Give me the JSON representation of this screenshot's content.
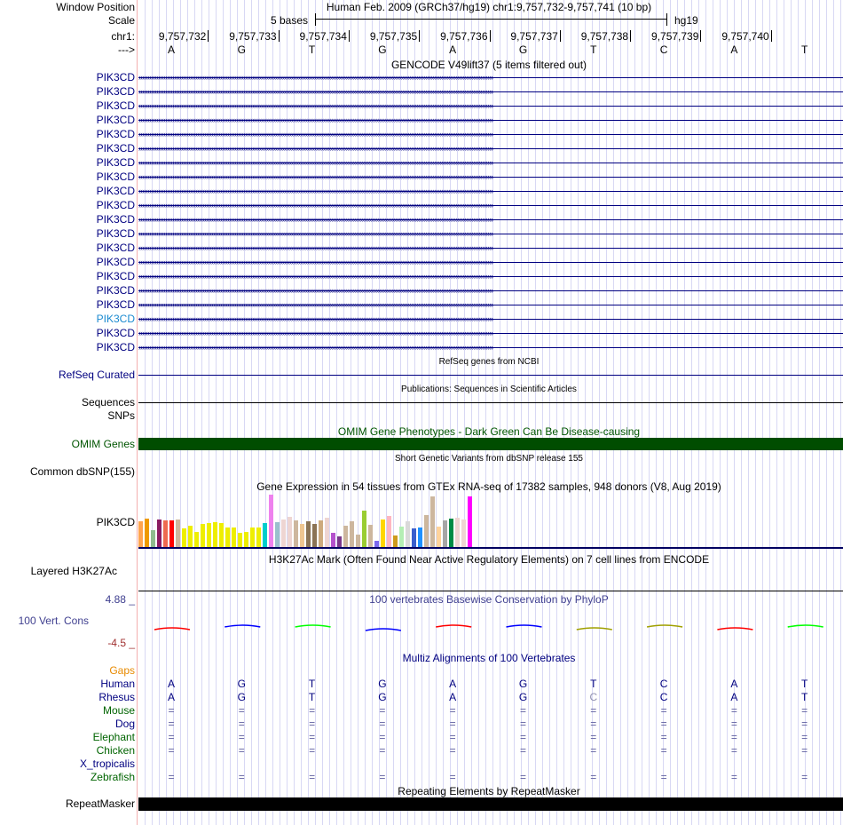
{
  "header": {
    "window_position_label": "Window Position",
    "window_position": "Human Feb. 2009 (GRCh37/hg19)   chr1:9,757,732-9,757,741 (10 bp)",
    "scale_label": "Scale",
    "scale_value": "5 bases",
    "assembly": "hg19",
    "chrom_label": "chr1:",
    "strand_label": "--->"
  },
  "coordinates": [
    "9,757,732",
    "9,757,733",
    "9,757,734",
    "9,757,735",
    "9,757,736",
    "9,757,737",
    "9,757,738",
    "9,757,739",
    "9,757,740"
  ],
  "bases": [
    "A",
    "G",
    "T",
    "G",
    "A",
    "G",
    "T",
    "C",
    "A",
    "T"
  ],
  "gencode": {
    "title": "GENCODE V49lift37 (5 items filtered out)",
    "rows": [
      "PIK3CD",
      "PIK3CD",
      "PIK3CD",
      "PIK3CD",
      "PIK3CD",
      "PIK3CD",
      "PIK3CD",
      "PIK3CD",
      "PIK3CD",
      "PIK3CD",
      "PIK3CD",
      "PIK3CD",
      "PIK3CD",
      "PIK3CD",
      "PIK3CD",
      "PIK3CD",
      "PIK3CD",
      "PIK3CD",
      "PIK3CD",
      "PIK3CD"
    ],
    "highlight_index": 17
  },
  "refseq": {
    "title": "RefSeq genes from NCBI",
    "label": "RefSeq Curated"
  },
  "publications": {
    "title": "Publications: Sequences in Scientific Articles",
    "label": "Sequences"
  },
  "snps": {
    "label": "SNPs"
  },
  "omim": {
    "title": "OMIM Gene Phenotypes - Dark Green Can Be Disease-causing",
    "label": "OMIM Genes",
    "color": "#004d00"
  },
  "dbsnp": {
    "title": "Short Genetic Variants from dbSNP release 155",
    "label": "Common dbSNP(155)"
  },
  "gtex": {
    "title": "Gene Expression in 54 tissues from GTEx RNA-seq of 17382 samples, 948 donors (V8, Aug 2019)",
    "label": "PIK3CD",
    "relative_expression": [
      0.49,
      0.54,
      0.32,
      0.52,
      0.51,
      0.51,
      0.52,
      0.36,
      0.41,
      0.29,
      0.44,
      0.46,
      0.47,
      0.46,
      0.37,
      0.37,
      0.27,
      0.29,
      0.37,
      0.37,
      0.46,
      1.0,
      0.47,
      0.52,
      0.57,
      0.51,
      0.44,
      0.49,
      0.44,
      0.51,
      0.56,
      0.27,
      0.21,
      0.41,
      0.49,
      0.24,
      0.69,
      0.42,
      0.12,
      0.52,
      0.59,
      0.22,
      0.39,
      0.49,
      0.36,
      0.37,
      0.61,
      0.96,
      0.39,
      0.51,
      0.54,
      0.56,
      0.52,
      0.97
    ],
    "colors": [
      "#ffa54f",
      "#ee9a00",
      "#8fbc8f",
      "#8b1c62",
      "#ee6a50",
      "#ff0000",
      "#cdb79e",
      "#eeee00",
      "#eeee00",
      "#eeee00",
      "#eeee00",
      "#eeee00",
      "#eeee00",
      "#eeee00",
      "#eeee00",
      "#eeee00",
      "#eeee00",
      "#eeee00",
      "#eeee00",
      "#eeee00",
      "#00cdcd",
      "#ee82ee",
      "#9ac0cd",
      "#eed5d2",
      "#eed5d2",
      "#cdb79e",
      "#eec591",
      "#8b7355",
      "#8b7355",
      "#cdaa7d",
      "#eed5d2",
      "#b452cd",
      "#7a378b",
      "#cdb79e",
      "#cdb79e",
      "#cdb79e",
      "#9acd32",
      "#cdb79e",
      "#7b68ee",
      "#ffd700",
      "#ffb6c1",
      "#cd9b1d",
      "#b4eeb4",
      "#d9d9d9",
      "#3a5fcd",
      "#1e90ff",
      "#cdb79e",
      "#cdb79e",
      "#ffd39b",
      "#a6a6a6",
      "#008b45",
      "#eed5d2",
      "#eed5d2",
      "#ff00ff"
    ]
  },
  "h3k27ac": {
    "title": "H3K27Ac Mark (Often Found Near Active Regulatory Elements) on 7 cell lines from ENCODE",
    "label": "Layered H3K27Ac"
  },
  "phylop": {
    "title": "100 vertebrates Basewise Conservation by PhyloP",
    "label": "100 Vert. Cons",
    "max": "4.88 _",
    "min": "-4.5 _",
    "colors": [
      "#ff0000",
      "#0000ff",
      "#00ff00",
      "#0000ff",
      "#ff0000",
      "#0000ff",
      "#a0a000",
      "#a0a000",
      "#ff0000",
      "#00ff00"
    ]
  },
  "multiz": {
    "title": "Multiz Alignments of 100 Vertebrates",
    "gaps_label": "Gaps",
    "species": [
      {
        "name": "Human",
        "color": "navy",
        "bases": [
          "A",
          "G",
          "T",
          "G",
          "A",
          "G",
          "T",
          "C",
          "A",
          "T"
        ]
      },
      {
        "name": "Rhesus",
        "color": "navy",
        "bases": [
          "A",
          "G",
          "T",
          "G",
          "A",
          "G",
          "C",
          "C",
          "A",
          "T"
        ]
      },
      {
        "name": "Mouse",
        "color": "green",
        "bases": [
          "=",
          "=",
          "=",
          "=",
          "=",
          "=",
          "=",
          "=",
          "=",
          "="
        ]
      },
      {
        "name": "Dog",
        "color": "navy",
        "bases": [
          "=",
          "=",
          "=",
          "=",
          "=",
          "=",
          "=",
          "=",
          "=",
          "="
        ]
      },
      {
        "name": "Elephant",
        "color": "green",
        "bases": [
          "=",
          "=",
          "=",
          "=",
          "=",
          "=",
          "=",
          "=",
          "=",
          "="
        ]
      },
      {
        "name": "Chicken",
        "color": "green",
        "bases": [
          "=",
          "=",
          "=",
          "=",
          "=",
          "=",
          "=",
          "=",
          "=",
          "="
        ]
      },
      {
        "name": "X_tropicalis",
        "color": "navy",
        "bases": [
          "",
          "",
          "",
          "",
          "",
          "",
          "",
          "",
          "",
          ""
        ]
      },
      {
        "name": "Zebrafish",
        "color": "green",
        "bases": [
          "=",
          "=",
          "=",
          "=",
          "=",
          "=",
          "=",
          "=",
          "=",
          "="
        ]
      }
    ]
  },
  "repeatmasker": {
    "title": "Repeating Elements by RepeatMasker",
    "label": "RepeatMasker"
  }
}
